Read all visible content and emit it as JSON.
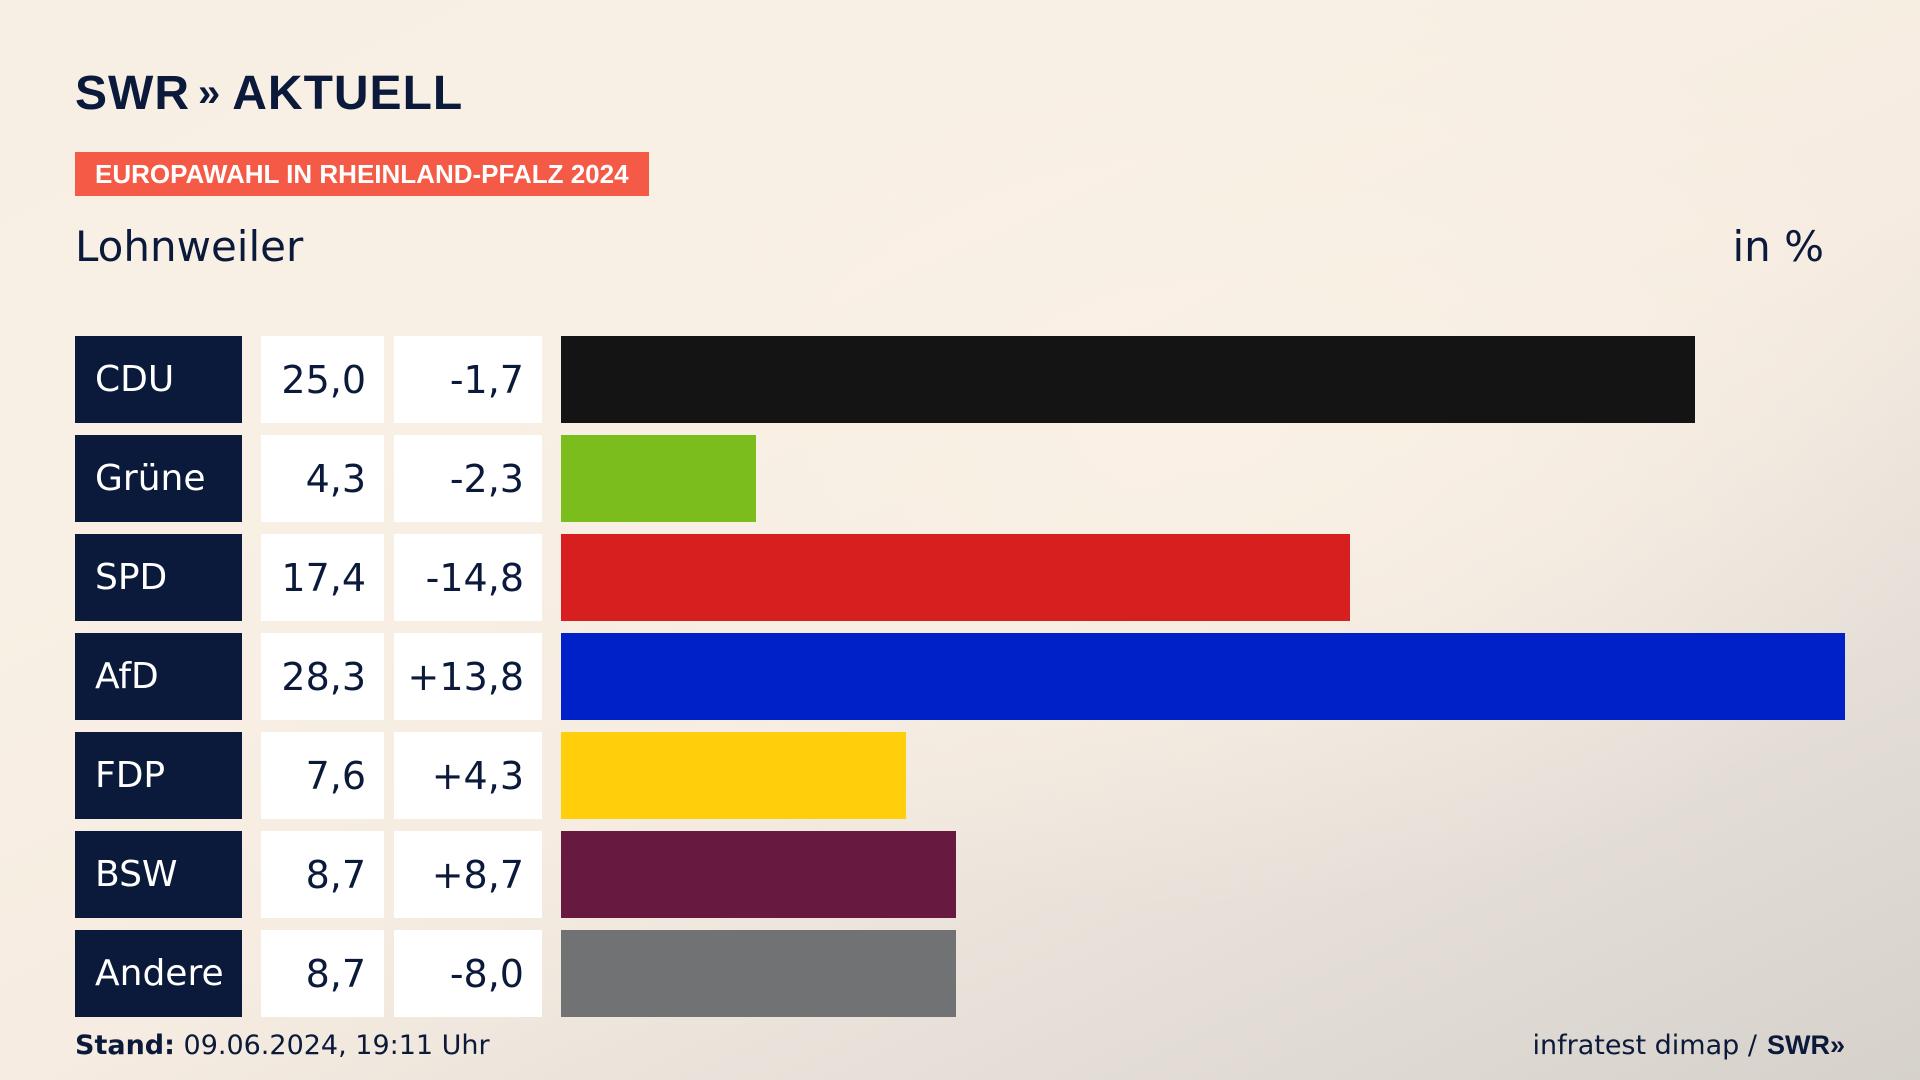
{
  "header": {
    "logo_text": "SWR",
    "logo_chevrons": "»",
    "logo_suffix": "AKTUELL",
    "tag": "EUROPAWAHL IN RHEINLAND-PFALZ 2024",
    "subtitle": "Lohnweiler",
    "unit": "in %"
  },
  "colors": {
    "navy": "#0b1a3a",
    "tag": "#f45a45"
  },
  "chart_data": {
    "type": "bar",
    "orientation": "horizontal",
    "categories": [
      "CDU",
      "Grüne",
      "SPD",
      "AfD",
      "FDP",
      "BSW",
      "Andere"
    ],
    "values": [
      25.0,
      4.3,
      17.4,
      28.3,
      7.6,
      8.7,
      8.7
    ],
    "value_labels": [
      "25,0",
      "4,3",
      "17,4",
      "28,3",
      "7,6",
      "8,7",
      "8,7"
    ],
    "diffs": [
      "-1,7",
      "-2,3",
      "-14,8",
      "+13,8",
      "+4,3",
      "+8,7",
      "-8,0"
    ],
    "bar_colors": [
      "#141414",
      "#7bbd1c",
      "#d71f1f",
      "#0020c8",
      "#fecf0a",
      "#67193f",
      "#717274"
    ],
    "xlim": [
      0,
      28.3
    ],
    "grid": false,
    "legend": "none"
  },
  "footer": {
    "stand_label": "Stand:",
    "stand_value": "09.06.2024, 19:11 Uhr",
    "source": "infratest dimap /",
    "source_logo": "SWR»"
  }
}
